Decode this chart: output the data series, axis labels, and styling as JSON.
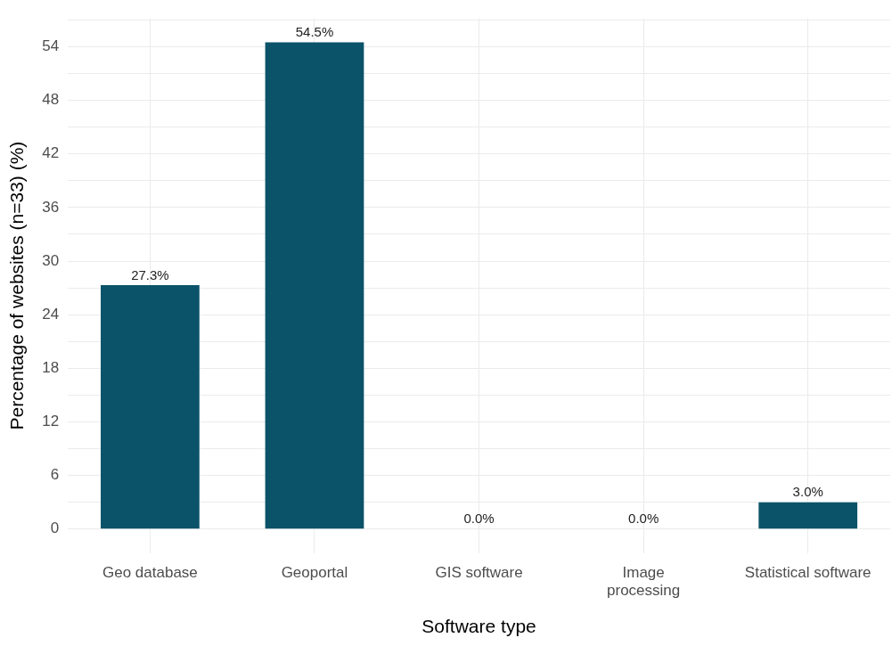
{
  "chart_data": {
    "type": "bar",
    "xlabel": "Software type",
    "ylabel": "Percentage of websites (n=33) (%)",
    "categories": [
      "Geo database",
      "Geoportal",
      "GIS software",
      "Image\nprocessing",
      "Statistical software"
    ],
    "values": [
      27.3,
      54.5,
      0,
      0,
      3.0
    ],
    "color": "#0b5369",
    "value_labels": [
      "27.3%",
      "54.5%",
      "0.0%",
      "0.0%",
      "3.0%"
    ],
    "ylim": [
      -2.725,
      57.225
    ],
    "yticks": [
      0,
      {
        "value": 3,
        "label": null
      },
      6,
      {
        "value": 9,
        "label": null
      },
      12,
      {
        "value": 15,
        "label": null
      },
      18,
      {
        "value": 21,
        "label": null
      },
      24,
      {
        "value": 27,
        "label": null
      },
      30,
      {
        "value": 33,
        "label": null
      },
      36,
      {
        "value": 39,
        "label": null
      },
      42,
      {
        "value": 45,
        "label": null
      },
      48,
      {
        "value": 51,
        "label": null
      },
      54,
      {
        "value": 57,
        "label": null
      }
    ],
    "grid": true,
    "legend": false
  }
}
